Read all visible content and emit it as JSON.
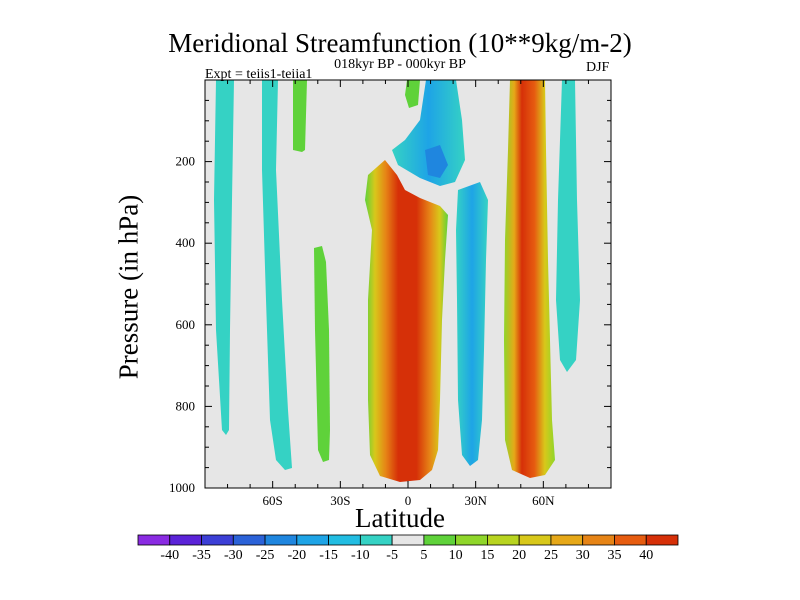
{
  "chart_data": {
    "type": "heatmap",
    "title": "Meridional Streamfunction (10**9kg/m-2)",
    "subtitle": "018kyr BP - 000kyr BP",
    "expt_label": "Expt = teiis1-teiia1",
    "season": "DJF",
    "xlabel": "Latitude",
    "ylabel": "Pressure (in hPa)",
    "xlim": [
      -90,
      90
    ],
    "ylim": [
      1000,
      0
    ],
    "x_ticks": [
      -60,
      -30,
      0,
      30,
      60
    ],
    "x_tick_labels": [
      "60S",
      "30S",
      "0",
      "30N",
      "60N"
    ],
    "y_ticks": [
      200,
      400,
      600,
      800,
      1000
    ],
    "y_tick_labels": [
      "200",
      "400",
      "600",
      "800",
      "1000"
    ],
    "grid": false,
    "colorbar": {
      "levels": [
        -40,
        -35,
        -30,
        -25,
        -20,
        -15,
        -10,
        -5,
        5,
        10,
        15,
        20,
        25,
        30,
        35,
        40
      ],
      "labels": [
        "-40",
        "-35",
        "-30",
        "-25",
        "-20",
        "-15",
        "-10",
        "-5",
        "5",
        "10",
        "15",
        "20",
        "25",
        "30",
        "35",
        "40"
      ],
      "colors": [
        "#8a2be2",
        "#5b23d8",
        "#3c3fd6",
        "#2b62d8",
        "#1f86df",
        "#1ea4e6",
        "#22bde2",
        "#35d2c4",
        "#e6e6e6",
        "#5fd23a",
        "#8fd62a",
        "#b8d420",
        "#d8c81a",
        "#e6a818",
        "#e68416",
        "#e65c10",
        "#d63008"
      ]
    },
    "features": [
      {
        "lat_center": -76,
        "p_top": 0,
        "p_bottom": 870,
        "value": -7
      },
      {
        "lat_center": -61,
        "p_top": 0,
        "p_bottom": 945,
        "value": -7
      },
      {
        "lat_center": -48,
        "p_top": 0,
        "p_bottom": 200,
        "value": 7
      },
      {
        "lat_center": -36,
        "p_top": 400,
        "p_bottom": 955,
        "value": 7
      },
      {
        "lat_center": 0,
        "p_top": 230,
        "p_bottom": 985,
        "value": 40
      },
      {
        "lat_center": 12,
        "p_top": 20,
        "p_bottom": 300,
        "value": -20
      },
      {
        "lat_center": 27,
        "p_top": 280,
        "p_bottom": 940,
        "value": -13
      },
      {
        "lat_center": 51,
        "p_top": 0,
        "p_bottom": 980,
        "value": 40
      },
      {
        "lat_center": 70,
        "p_top": 0,
        "p_bottom": 760,
        "value": -7
      },
      {
        "lat_center": 2,
        "p_top": 0,
        "p_bottom": 100,
        "value": 7
      }
    ]
  }
}
